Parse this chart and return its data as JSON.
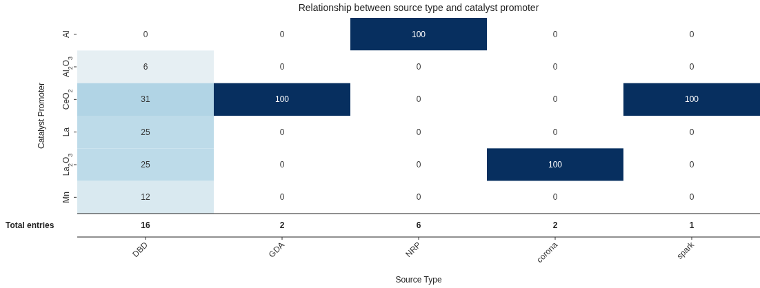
{
  "chart_data": {
    "type": "heatmap",
    "title": "Relationship between source type and catalyst promoter",
    "xlabel": "Source Type",
    "ylabel": "Catalyst Promoter",
    "categories": [
      "DBD",
      "GDA",
      "NRP",
      "corona",
      "spark"
    ],
    "y_categories": [
      "Al",
      "Al$_{2}$O$_{3}$",
      "CeO$_{2}$",
      "La",
      "La$_{2}$O$_{3}$",
      "Mn"
    ],
    "cells": [
      [
        0,
        0,
        100,
        0,
        0
      ],
      [
        6,
        0,
        0,
        0,
        0
      ],
      [
        31,
        100,
        0,
        0,
        100
      ],
      [
        25,
        0,
        0,
        0,
        0
      ],
      [
        25,
        0,
        0,
        100,
        0
      ],
      [
        12,
        0,
        0,
        0,
        0
      ]
    ],
    "data_labels": true,
    "annotations": [
      "Total entries"
    ],
    "totals": [
      "16",
      "2",
      "6",
      "2",
      "1"
    ]
  }
}
